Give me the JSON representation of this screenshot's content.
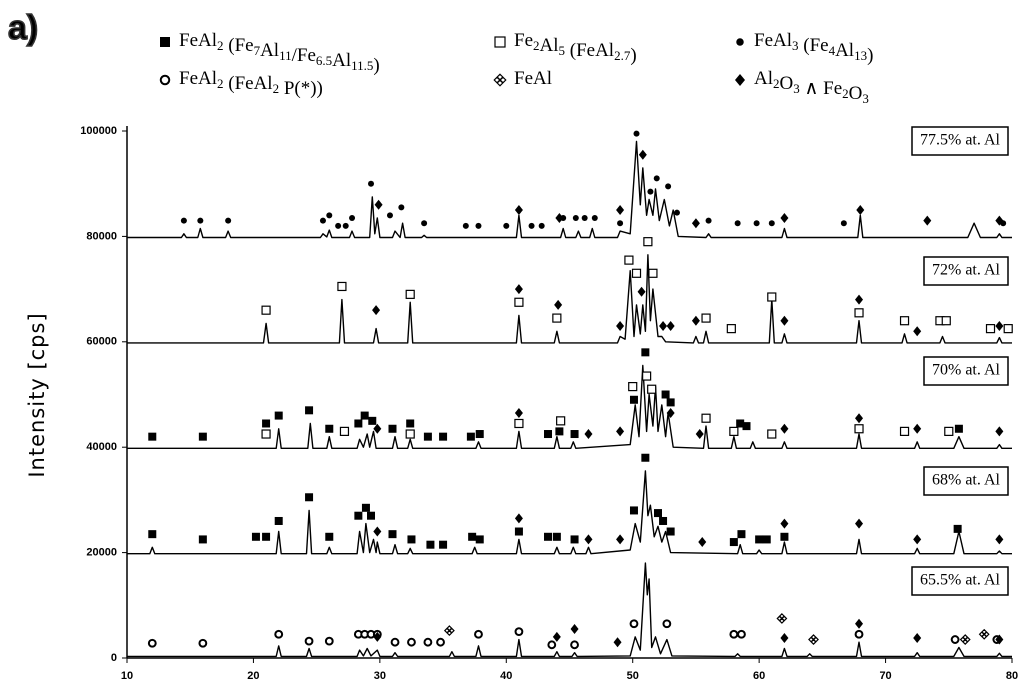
{
  "chart_data": {
    "type": "line",
    "panel": "a)",
    "ylabel": "Intensity [cps]",
    "xlim": [
      10,
      80
    ],
    "xticks": [
      10,
      20,
      30,
      40,
      50,
      60,
      70,
      80
    ],
    "ylim": [
      0,
      100000
    ],
    "yticks": [
      0,
      20000,
      40000,
      60000,
      80000,
      100000
    ],
    "series": [
      {
        "name": "77.5% at. Al",
        "color": "#000000",
        "x": [
          10,
          14.3,
          14.5,
          14.7,
          15.6,
          15.8,
          16,
          17.8,
          18,
          18.2,
          25.3,
          25.5,
          25.8,
          26,
          26.2,
          27.6,
          27.8,
          28,
          29.2,
          29.4,
          29.6,
          29.8,
          30,
          31,
          31.2,
          31.6,
          31.8,
          32,
          33.3,
          33.5,
          33.7,
          40.8,
          41,
          41.2,
          44.3,
          44.5,
          44.7,
          45.5,
          45.7,
          45.9,
          46.6,
          46.8,
          47,
          48.8,
          49,
          49.8,
          50.3,
          50.6,
          50.8,
          51.1,
          51.3,
          51.6,
          51.8,
          52.1,
          52.5,
          52.9,
          53.2,
          53.6,
          55.8,
          56,
          56.2,
          61.8,
          62,
          62.2,
          67.8,
          68,
          68.2,
          76.5,
          77,
          77.5,
          78.8,
          79,
          79.2,
          80
        ],
        "values": [
          79800,
          79800,
          80500,
          79800,
          79800,
          81500,
          79800,
          79800,
          81000,
          79800,
          79800,
          80500,
          79900,
          81200,
          79800,
          79800,
          81000,
          79800,
          79800,
          87500,
          80500,
          83500,
          79800,
          79800,
          81000,
          79800,
          82500,
          79800,
          79800,
          80200,
          79800,
          79800,
          84000,
          79800,
          79800,
          81500,
          79800,
          79800,
          81000,
          79800,
          79800,
          81500,
          79800,
          79800,
          81000,
          80500,
          98000,
          86000,
          93000,
          84000,
          87000,
          84000,
          89000,
          83000,
          87000,
          82000,
          85000,
          80000,
          79800,
          80500,
          79800,
          79800,
          81500,
          79800,
          79800,
          84000,
          79800,
          79800,
          82500,
          79800,
          79800,
          80500,
          79800,
          79800
        ]
      },
      {
        "name": "72% at. Al",
        "color": "#000000",
        "x": [
          10,
          20.8,
          21,
          21.2,
          26.8,
          27,
          27.2,
          29.5,
          29.7,
          29.9,
          32.2,
          32.4,
          32.6,
          40.8,
          41,
          41.2,
          43.8,
          44,
          44.2,
          48.8,
          49,
          49.4,
          49.8,
          50.1,
          50.3,
          50.6,
          50.8,
          51,
          51.2,
          51.4,
          51.6,
          52,
          52.3,
          52.6,
          54.8,
          55,
          55.2,
          55.6,
          55.8,
          56,
          60.8,
          61,
          61.2,
          61.8,
          62,
          62.2,
          67.7,
          67.9,
          68.1,
          71.3,
          71.5,
          71.7,
          74.3,
          74.5,
          74.7,
          78.8,
          79,
          79.2,
          80
        ],
        "values": [
          59800,
          59800,
          63500,
          59800,
          59800,
          68000,
          59800,
          59800,
          62500,
          59800,
          59800,
          67500,
          59800,
          59800,
          65000,
          59800,
          59800,
          62000,
          59800,
          59800,
          61000,
          60500,
          73500,
          61000,
          67000,
          61500,
          67000,
          62000,
          76500,
          64000,
          70000,
          61000,
          61000,
          60000,
          59800,
          61000,
          59800,
          59800,
          62000,
          59800,
          59800,
          68000,
          59800,
          59800,
          61500,
          59800,
          59800,
          64000,
          59800,
          59800,
          61500,
          59800,
          59800,
          61000,
          59800,
          59800,
          60800,
          59800,
          59800
        ]
      },
      {
        "name": "70% at. Al",
        "color": "#000000",
        "x": [
          10,
          21.8,
          22,
          22.2,
          24.3,
          24.5,
          24.7,
          25.8,
          26,
          26.2,
          28.2,
          28.4,
          28.7,
          29,
          29.2,
          29.5,
          29.7,
          31,
          31.2,
          31.4,
          32.2,
          32.4,
          32.6,
          37.6,
          37.8,
          38,
          40.8,
          41,
          41.2,
          43.8,
          44,
          44.2,
          45.1,
          45.3,
          45.5,
          49.8,
          50.2,
          50.5,
          50.8,
          51.1,
          51.3,
          51.6,
          51.8,
          52,
          52.3,
          52.6,
          52.8,
          53.2,
          55.6,
          55.8,
          56,
          57.8,
          58,
          58.2,
          59.3,
          59.5,
          59.7,
          61.8,
          62,
          62.2,
          67.7,
          67.9,
          68.1,
          72.3,
          72.5,
          72.7,
          75.4,
          75.8,
          76.2,
          78.8,
          79,
          79.2,
          80
        ],
        "values": [
          39800,
          39800,
          43500,
          39800,
          39800,
          44500,
          39800,
          39800,
          42000,
          39800,
          39800,
          41500,
          40000,
          42500,
          40000,
          43000,
          39800,
          39800,
          42000,
          39800,
          39800,
          41500,
          39800,
          39800,
          41000,
          39800,
          39800,
          43000,
          39800,
          39800,
          42000,
          39800,
          39800,
          41000,
          39800,
          40500,
          48000,
          42000,
          55500,
          43000,
          50000,
          44000,
          51500,
          43000,
          48000,
          42000,
          46500,
          40000,
          39800,
          44000,
          39800,
          39800,
          42000,
          39800,
          39800,
          41000,
          39800,
          39800,
          41000,
          39800,
          39800,
          42500,
          39800,
          39800,
          41000,
          39800,
          39800,
          42000,
          39800,
          39800,
          40500,
          39800,
          39800
        ]
      },
      {
        "name": "68% at. Al",
        "color": "#000000",
        "x": [
          10,
          11.8,
          12,
          12.2,
          21.8,
          22,
          22.2,
          24.2,
          24.4,
          24.6,
          25.8,
          26,
          26.2,
          28.2,
          28.4,
          28.7,
          28.9,
          29.2,
          29.5,
          29.7,
          29.8,
          30,
          31,
          31.2,
          31.4,
          32.2,
          32.4,
          32.6,
          37.3,
          37.5,
          37.7,
          40.8,
          41,
          41.2,
          43.8,
          44,
          44.2,
          45.1,
          45.3,
          45.5,
          46.3,
          46.5,
          46.7,
          49.8,
          50.2,
          50.6,
          51,
          51.2,
          51.4,
          51.7,
          52,
          52.3,
          52.6,
          53,
          58.3,
          58.5,
          58.7,
          59.8,
          60,
          60.2,
          61.8,
          62,
          62.2,
          67.7,
          67.9,
          68.1,
          72.3,
          72.5,
          72.7,
          75.4,
          75.8,
          76.2,
          78.8,
          79,
          79.2,
          80
        ],
        "values": [
          19800,
          19800,
          21000,
          19800,
          19800,
          24000,
          19800,
          19800,
          28000,
          19800,
          19800,
          21000,
          19800,
          19800,
          24000,
          20000,
          25500,
          20000,
          22500,
          20000,
          22000,
          19800,
          19800,
          21500,
          19800,
          19800,
          20800,
          19800,
          19800,
          21000,
          19800,
          19800,
          22500,
          19800,
          19800,
          21000,
          19800,
          19800,
          21000,
          19800,
          19800,
          21000,
          19800,
          20500,
          25500,
          22000,
          35500,
          27000,
          29000,
          23000,
          25000,
          22000,
          24000,
          20000,
          19800,
          21500,
          19800,
          19800,
          20500,
          19800,
          19800,
          22000,
          19800,
          19800,
          22500,
          19800,
          19800,
          20800,
          19800,
          19800,
          24000,
          19800,
          19800,
          20300,
          19800,
          19800
        ]
      },
      {
        "name": "65.5% at. Al",
        "color": "#000000",
        "x": [
          10,
          21.8,
          22,
          22.2,
          24.2,
          24.4,
          24.6,
          28.2,
          28.4,
          28.7,
          29,
          29.3,
          29.8,
          30,
          31,
          31.2,
          31.4,
          35.5,
          35.7,
          35.9,
          37.6,
          37.8,
          38,
          40.8,
          41,
          41.2,
          43.8,
          44,
          44.2,
          45.2,
          45.4,
          45.6,
          49.8,
          50.2,
          50.6,
          51,
          51.15,
          51.3,
          51.5,
          51.8,
          52.2,
          52.7,
          53.1,
          58.1,
          58.3,
          58.5,
          61.8,
          62,
          62.2,
          63.8,
          64,
          64.2,
          67.7,
          67.9,
          68.1,
          72.3,
          72.5,
          72.7,
          75.4,
          75.8,
          76.2,
          78.8,
          79,
          79.2,
          80
        ],
        "values": [
          300,
          300,
          2300,
          300,
          300,
          1800,
          300,
          300,
          1500,
          400,
          1800,
          400,
          1500,
          300,
          300,
          1000,
          300,
          300,
          1200,
          300,
          300,
          2300,
          300,
          300,
          3500,
          300,
          300,
          1200,
          300,
          300,
          1000,
          300,
          400,
          4000,
          1500,
          18000,
          12000,
          15000,
          2000,
          4000,
          800,
          3500,
          400,
          300,
          800,
          300,
          300,
          1800,
          300,
          300,
          800,
          300,
          300,
          3000,
          300,
          300,
          1000,
          300,
          300,
          2000,
          300,
          300,
          900,
          300,
          300
        ]
      }
    ],
    "legend": [
      {
        "name": "FeAl2 (Fe7Al11/Fe6.5Al11.5)",
        "symbol": "filled-square",
        "x": [
          12,
          16,
          21,
          22,
          24.4,
          26,
          28.3,
          28.8,
          29.4,
          31,
          32.4,
          33.8,
          35,
          37.2,
          37.9,
          43.3,
          44.2,
          45.4,
          50.1,
          51,
          52.6,
          53,
          58.5,
          59,
          75.8,
          12,
          16,
          20.2,
          21,
          22,
          24.4,
          26,
          28.3,
          28.9,
          29.3,
          31,
          32.5,
          34,
          35,
          37.3,
          37.9,
          41,
          43.3,
          44,
          45.4,
          50.1,
          51,
          52,
          52.4,
          53,
          58,
          58.6,
          60,
          60.6,
          62,
          75.7
        ],
        "y": [
          42000,
          42000,
          44500,
          46000,
          47000,
          43500,
          44500,
          46000,
          45000,
          43500,
          44500,
          42000,
          42000,
          42000,
          42500,
          42500,
          43000,
          42500,
          49000,
          58000,
          50000,
          48500,
          44500,
          44000,
          43500,
          23500,
          22500,
          23000,
          23000,
          26000,
          30500,
          23000,
          27000,
          28500,
          27000,
          23500,
          22500,
          21500,
          21500,
          23000,
          22500,
          24000,
          23000,
          23000,
          22500,
          28000,
          38000,
          27500,
          26000,
          24000,
          22000,
          23500,
          22500,
          22500,
          23000,
          24500
        ]
      },
      {
        "name": "Fe2Al5 (FeAl2.7)",
        "symbol": "open-square",
        "x": [
          21,
          27,
          32.4,
          41,
          44,
          49.7,
          50.3,
          51.2,
          51.6,
          55.8,
          57.8,
          61,
          67.9,
          71.5,
          74.3,
          74.8,
          78.3,
          79.7,
          21,
          27.2,
          32.4,
          41,
          44.3,
          50,
          51.1,
          51.5,
          55.8,
          58,
          61,
          67.9,
          71.5,
          75
        ],
        "y": [
          66000,
          70500,
          69000,
          67500,
          64500,
          75500,
          73000,
          79000,
          73000,
          64500,
          62500,
          68500,
          65500,
          64000,
          64000,
          64000,
          62500,
          62500,
          42500,
          43000,
          42500,
          44500,
          45000,
          51500,
          53500,
          51000,
          45500,
          43000,
          42500,
          43500,
          43000,
          43000
        ]
      },
      {
        "name": "FeAl3 (Fe4Al13)",
        "symbol": "dot",
        "x": [
          14.5,
          15.8,
          18,
          25.5,
          26,
          26.7,
          27.3,
          27.8,
          29.3,
          30.8,
          31.7,
          33.5,
          36.8,
          37.8,
          40,
          42,
          42.8,
          44.5,
          45.5,
          46.2,
          47,
          49,
          50.3,
          51.4,
          51.9,
          52.8,
          53.5,
          56,
          58.3,
          59.8,
          61,
          66.7,
          79.3
        ],
        "y": [
          83000,
          83000,
          83000,
          83000,
          84000,
          82000,
          82000,
          83500,
          90000,
          84000,
          85500,
          82500,
          82000,
          82000,
          82000,
          82000,
          82000,
          83500,
          83500,
          83500,
          83500,
          82500,
          99500,
          88500,
          91000,
          89500,
          84500,
          83000,
          82500,
          82500,
          82500,
          82500,
          82500
        ]
      },
      {
        "name": "FeAl2 (FeAl2 P(*))",
        "symbol": "open-circle",
        "x": [
          12,
          16,
          22,
          24.4,
          26,
          28.3,
          28.8,
          29.3,
          29.8,
          31.2,
          32.5,
          33.8,
          34.8,
          37.8,
          41,
          43.6,
          45.4,
          50.1,
          52.7,
          58,
          58.6,
          67.9,
          75.5,
          78.8
        ],
        "y": [
          2800,
          2800,
          4500,
          3200,
          3200,
          4500,
          4500,
          4500,
          4500,
          3000,
          3000,
          3000,
          3000,
          4500,
          5000,
          2500,
          2500,
          6500,
          6500,
          4500,
          4500,
          4500,
          3500,
          3500
        ]
      },
      {
        "name": "FeAl",
        "symbol": "cluster",
        "x": [
          35.5,
          61.8,
          64.3,
          76.3,
          77.8
        ],
        "y": [
          5200,
          7500,
          3500,
          3500,
          4500
        ]
      },
      {
        "name": "Al2O3 ∧ Fe2O3",
        "symbol": "diamond",
        "x": [
          29.9,
          41,
          44.2,
          49,
          50.8,
          55,
          62,
          68,
          73.3,
          79,
          29.7,
          41,
          44.1,
          49,
          50.7,
          52.4,
          53,
          55,
          62,
          67.9,
          72.5,
          79,
          29.8,
          41,
          46.5,
          49,
          53,
          55.3,
          62,
          67.9,
          72.5,
          79,
          29.8,
          41,
          46.5,
          49,
          55.5,
          62,
          67.9,
          72.5,
          79,
          29.8,
          44,
          45.4,
          48.8,
          62,
          67.9,
          72.5,
          79
        ],
        "y": [
          86000,
          85000,
          83500,
          85000,
          95500,
          82500,
          83500,
          85000,
          83000,
          83000,
          66000,
          70000,
          67000,
          63000,
          69500,
          63000,
          63000,
          64000,
          64000,
          68000,
          62000,
          63000,
          43500,
          46500,
          42500,
          43000,
          46500,
          42500,
          43500,
          45500,
          43500,
          43000,
          24000,
          26500,
          22500,
          22500,
          22000,
          25500,
          25500,
          22500,
          22500,
          4000,
          4000,
          5500,
          3000,
          3800,
          6500,
          3800,
          3500
        ]
      }
    ]
  }
}
